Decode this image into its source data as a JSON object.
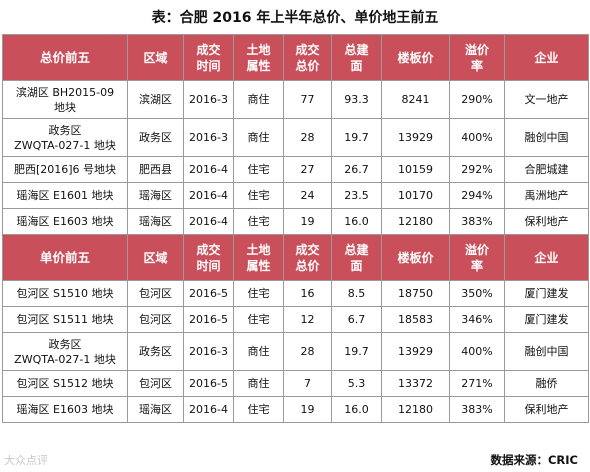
{
  "caption": "表：合肥 2016 年上半年总价、单价地王前五",
  "headers_total": [
    "总价前五",
    "区域",
    "成交\n时间",
    "土地\n属性",
    "成交\n总价",
    "总建\n面",
    "楼板价",
    "溢价\n率",
    "企业"
  ],
  "headers_unit": [
    "单价前五",
    "区域",
    "成交\n时间",
    "土地\n属性",
    "成交\n总价",
    "总建\n面",
    "楼板价",
    "溢价\n率",
    "企业"
  ],
  "total_rows": [
    [
      "滨湖区 BH2015-09\n地块",
      "滨湖区",
      "2016-3",
      "商住",
      "77",
      "93.3",
      "8241",
      "290%",
      "文一地产"
    ],
    [
      "政务区\nZWQTA-027-1 地块",
      "政务区",
      "2016-3",
      "商住",
      "28",
      "19.7",
      "13929",
      "400%",
      "融创中国"
    ],
    [
      "肥西[2016]6 号地块",
      "肥西县",
      "2016-4",
      "住宅",
      "27",
      "26.7",
      "10159",
      "292%",
      "合肥城建"
    ],
    [
      "瑶海区 E1601 地块",
      "瑶海区",
      "2016-4",
      "住宅",
      "24",
      "23.5",
      "10170",
      "294%",
      "禹洲地产"
    ],
    [
      "瑶海区 E1603 地块",
      "瑶海区",
      "2016-4",
      "住宅",
      "19",
      "16.0",
      "12180",
      "383%",
      "保利地产"
    ]
  ],
  "unit_rows": [
    [
      "包河区 S1510 地块",
      "包河区",
      "2016-5",
      "住宅",
      "16",
      "8.5",
      "18750",
      "350%",
      "厦门建发"
    ],
    [
      "包河区 S1511 地块",
      "包河区",
      "2016-5",
      "住宅",
      "12",
      "6.7",
      "18583",
      "346%",
      "厦门建发"
    ],
    [
      "政务区\nZWQTA-027-1 地块",
      "政务区",
      "2016-3",
      "商住",
      "28",
      "19.7",
      "13929",
      "400%",
      "融创中国"
    ],
    [
      "包河区 S1512 地块",
      "包河区",
      "2016-5",
      "商住",
      "7",
      "5.3",
      "13372",
      "271%",
      "融侨"
    ],
    [
      "瑶海区 E1603 地块",
      "瑶海区",
      "2016-4",
      "住宅",
      "19",
      "16.0",
      "12180",
      "383%",
      "保利地产"
    ]
  ],
  "footer": {
    "watermark": "大众点评",
    "source": "数据来源：CRIC"
  },
  "colors": {
    "header_bg": "#c9505a",
    "header_text": "#ffffff",
    "border": "#9a9a9a"
  }
}
